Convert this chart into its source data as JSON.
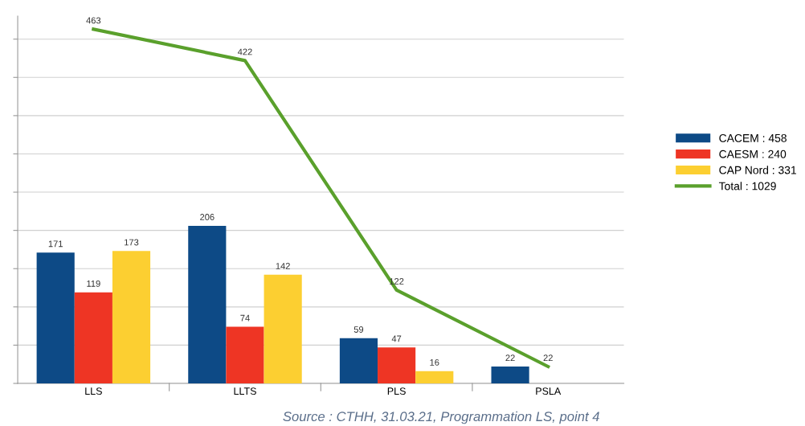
{
  "chart_data": {
    "type": "bar",
    "categories": [
      "LLS",
      "LLTS",
      "PLS",
      "PSLA"
    ],
    "series": [
      {
        "name": "CACEM : 458",
        "color": "#0d4a86",
        "values": [
          171,
          206,
          59,
          22
        ]
      },
      {
        "name": "CAESM : 240",
        "color": "#ee3524",
        "values": [
          119,
          74,
          47,
          null
        ]
      },
      {
        "name": "CAP Nord : 331",
        "color": "#fccf31",
        "values": [
          173,
          142,
          16,
          null
        ]
      },
      {
        "name": "Total : 1029",
        "color": "#5aa02c",
        "type": "line",
        "values": [
          463,
          422,
          122,
          22
        ]
      }
    ],
    "ylim": [
      0,
      480
    ],
    "yticks": [
      {
        "value": 0,
        "label": null
      },
      {
        "value": 50,
        "label": null
      },
      {
        "value": 100,
        "label": null
      },
      {
        "value": 150,
        "label": null
      },
      {
        "value": 200,
        "label": null
      },
      {
        "value": 250,
        "label": null
      },
      {
        "value": 300,
        "label": null
      },
      {
        "value": 350,
        "label": null
      },
      {
        "value": 400,
        "label": null
      },
      {
        "value": 450,
        "label": null
      }
    ],
    "tick_labels": "x",
    "grid": "y",
    "legend": "right",
    "marker": "none",
    "data_labels": true,
    "annotations": [
      "Source : CTHH, 31.03.21, Programmation LS, point 4"
    ]
  }
}
